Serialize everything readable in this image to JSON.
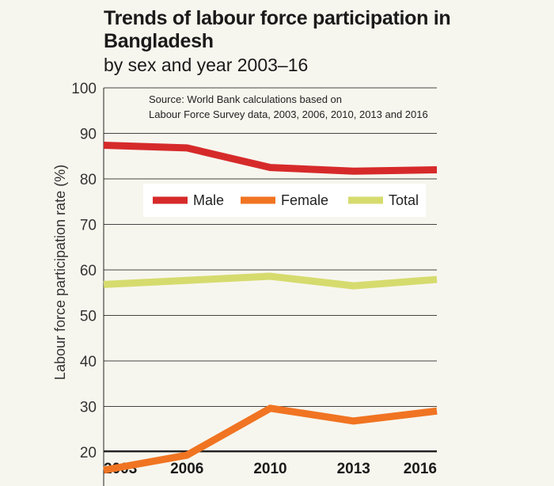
{
  "chart_data": {
    "type": "line",
    "title": "Trends of labour force participation in Bangladesh",
    "subtitle": "by sex and year 2003–16",
    "ylabel": "Labour force participation rate (%)",
    "xlabel": "",
    "ylim": [
      10,
      100
    ],
    "yticks": [
      100,
      90,
      80,
      70,
      60,
      50,
      40,
      30,
      20
    ],
    "x": [
      "2003",
      "2006",
      "2010",
      "2013",
      "2016"
    ],
    "series": [
      {
        "name": "Male",
        "color": "#d62a2a",
        "values": [
          87.4,
          86.8,
          82.5,
          81.7,
          82.0
        ]
      },
      {
        "name": "Female",
        "color": "#f07422",
        "values": [
          16.0,
          19.3,
          29.6,
          26.8,
          29.0
        ]
      },
      {
        "name": "Total",
        "color": "#d6db6e",
        "values": [
          56.8,
          57.7,
          58.6,
          56.5,
          57.9
        ]
      }
    ],
    "source_lines": [
      "Source: World Bank calculations based on",
      "Labour Force Survey data, 2003, 2006, 2010, 2013 and 2016"
    ],
    "grid": true,
    "legend_position": "center-top"
  }
}
